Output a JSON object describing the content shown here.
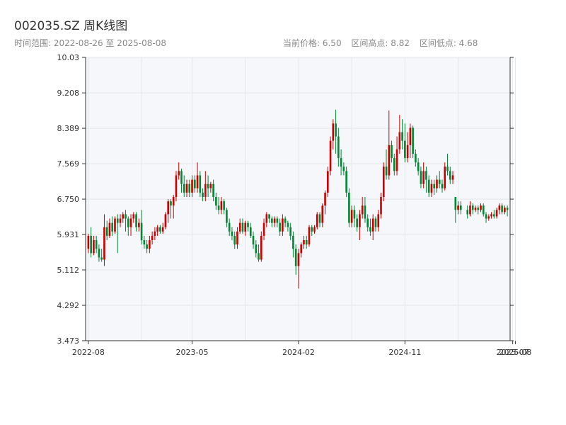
{
  "header": {
    "title": "002035.SZ 周K线图",
    "range_label": "时间范围: 2022-08-26 至 2025-08-08",
    "current_price": "当前价格: 6.50",
    "range_high": "区间高点: 8.82",
    "range_low": "区间低点: 4.68"
  },
  "chart_data": {
    "type": "candlestick",
    "title": "002035.SZ 周K线图",
    "ylim": [
      3.473,
      10.03
    ],
    "yticks": [
      "3.473",
      "4.292",
      "5.112",
      "5.931",
      "6.750",
      "7.569",
      "8.389",
      "9.208",
      "10.03"
    ],
    "xticks": [
      {
        "label": "2022-08",
        "idx": 0
      },
      {
        "label": "2023-05",
        "idx": 39
      },
      {
        "label": "2024-02",
        "idx": 79
      },
      {
        "label": "2024-11",
        "idx": 119
      },
      {
        "label": "2025-07",
        "idx": 158
      },
      {
        "label": "2025-08",
        "idx": 159
      }
    ],
    "up_color": "#cc0000",
    "down_color": "#008833",
    "grid": true,
    "gap_after_index": 140,
    "candles": [
      [
        5.6,
        5.9,
        5.5,
        5.95
      ],
      [
        5.9,
        5.5,
        5.4,
        6.1
      ],
      [
        5.5,
        5.8,
        5.45,
        5.9
      ],
      [
        5.8,
        5.6,
        5.5,
        5.9
      ],
      [
        5.6,
        5.4,
        5.3,
        5.7
      ],
      [
        5.4,
        5.35,
        5.3,
        5.6
      ],
      [
        5.35,
        6.1,
        5.2,
        6.4
      ],
      [
        6.1,
        5.9,
        5.8,
        6.25
      ],
      [
        5.9,
        6.2,
        5.85,
        6.3
      ],
      [
        6.2,
        6.0,
        5.9,
        6.35
      ],
      [
        6.0,
        6.3,
        5.95,
        6.35
      ],
      [
        6.3,
        6.2,
        5.5,
        6.4
      ],
      [
        6.2,
        6.3,
        6.1,
        6.4
      ],
      [
        6.3,
        6.4,
        6.2,
        6.45
      ],
      [
        6.4,
        6.3,
        6.0,
        6.5
      ],
      [
        6.3,
        6.1,
        5.9,
        6.35
      ],
      [
        6.1,
        6.3,
        5.9,
        6.4
      ],
      [
        6.3,
        6.4,
        6.2,
        6.45
      ],
      [
        6.4,
        6.1,
        6.0,
        6.45
      ],
      [
        6.1,
        6.2,
        6.0,
        6.3
      ],
      [
        6.2,
        5.8,
        5.7,
        6.5
      ],
      [
        5.8,
        5.7,
        5.6,
        5.9
      ],
      [
        5.7,
        5.6,
        5.5,
        5.8
      ],
      [
        5.6,
        5.8,
        5.5,
        5.9
      ],
      [
        5.8,
        5.9,
        5.7,
        6.0
      ],
      [
        5.9,
        6.0,
        5.8,
        6.1
      ],
      [
        6.0,
        6.1,
        5.9,
        6.15
      ],
      [
        6.1,
        6.0,
        5.95,
        6.15
      ],
      [
        6.0,
        6.1,
        5.95,
        6.2
      ],
      [
        6.1,
        6.4,
        6.05,
        6.45
      ],
      [
        6.4,
        6.7,
        6.2,
        6.75
      ],
      [
        6.7,
        6.6,
        6.3,
        6.75
      ],
      [
        6.6,
        6.8,
        6.3,
        6.85
      ],
      [
        6.8,
        7.3,
        6.7,
        7.4
      ],
      [
        7.3,
        7.4,
        7.2,
        7.6
      ],
      [
        7.4,
        7.1,
        6.9,
        7.45
      ],
      [
        7.1,
        6.9,
        6.8,
        7.3
      ],
      [
        6.9,
        7.1,
        6.8,
        7.2
      ],
      [
        7.1,
        6.9,
        6.8,
        7.2
      ],
      [
        6.9,
        7.2,
        6.8,
        7.3
      ],
      [
        7.2,
        7.0,
        6.9,
        7.3
      ],
      [
        7.0,
        7.3,
        6.9,
        7.6
      ],
      [
        7.3,
        6.9,
        6.8,
        7.4
      ],
      [
        6.9,
        6.8,
        6.7,
        7.0
      ],
      [
        6.8,
        7.1,
        6.7,
        7.4
      ],
      [
        7.1,
        7.0,
        6.8,
        7.3
      ],
      [
        7.0,
        7.1,
        6.9,
        7.15
      ],
      [
        7.1,
        6.8,
        6.7,
        7.2
      ],
      [
        6.8,
        6.6,
        6.5,
        6.9
      ],
      [
        6.6,
        6.5,
        6.4,
        6.8
      ],
      [
        6.5,
        6.7,
        6.4,
        6.8
      ],
      [
        6.7,
        6.5,
        6.4,
        6.75
      ],
      [
        6.5,
        6.2,
        6.1,
        6.55
      ],
      [
        6.2,
        6.0,
        5.9,
        6.3
      ],
      [
        6.0,
        5.9,
        5.8,
        6.1
      ],
      [
        5.9,
        5.7,
        5.6,
        6.0
      ],
      [
        5.7,
        6.0,
        5.6,
        6.1
      ],
      [
        6.0,
        6.2,
        5.95,
        6.3
      ],
      [
        6.2,
        6.0,
        5.95,
        6.3
      ],
      [
        6.0,
        6.2,
        5.9,
        6.25
      ],
      [
        6.2,
        6.1,
        6.0,
        6.25
      ],
      [
        6.1,
        5.9,
        5.85,
        6.2
      ],
      [
        5.9,
        5.7,
        5.6,
        6.0
      ],
      [
        5.7,
        5.5,
        5.4,
        5.8
      ],
      [
        5.5,
        5.35,
        5.3,
        5.7
      ],
      [
        5.35,
        5.9,
        5.3,
        6.0
      ],
      [
        5.9,
        6.2,
        5.8,
        6.3
      ],
      [
        6.2,
        6.4,
        6.1,
        6.45
      ],
      [
        6.4,
        6.3,
        6.2,
        6.4
      ],
      [
        6.3,
        6.2,
        6.1,
        6.35
      ],
      [
        6.2,
        6.3,
        6.1,
        6.35
      ],
      [
        6.3,
        6.2,
        6.1,
        6.35
      ],
      [
        6.2,
        6.0,
        5.9,
        6.3
      ],
      [
        6.0,
        6.3,
        5.9,
        6.4
      ],
      [
        6.3,
        6.2,
        6.1,
        6.35
      ],
      [
        6.2,
        6.1,
        6.0,
        6.25
      ],
      [
        6.1,
        5.9,
        5.8,
        6.2
      ],
      [
        5.9,
        5.6,
        5.4,
        6.0
      ],
      [
        5.6,
        5.2,
        5.0,
        5.7
      ],
      [
        5.2,
        5.5,
        4.68,
        5.6
      ],
      [
        5.5,
        5.7,
        5.4,
        5.75
      ],
      [
        5.7,
        5.8,
        5.6,
        5.9
      ],
      [
        5.8,
        5.7,
        5.6,
        5.9
      ],
      [
        5.7,
        6.1,
        5.65,
        6.15
      ],
      [
        6.1,
        6.0,
        5.9,
        6.15
      ],
      [
        6.0,
        6.1,
        5.95,
        6.15
      ],
      [
        6.1,
        6.4,
        6.05,
        6.45
      ],
      [
        6.4,
        6.2,
        6.1,
        6.45
      ],
      [
        6.2,
        6.6,
        6.1,
        6.65
      ],
      [
        6.6,
        6.9,
        6.4,
        6.95
      ],
      [
        6.9,
        7.4,
        6.8,
        7.5
      ],
      [
        7.4,
        8.1,
        7.3,
        8.2
      ],
      [
        8.1,
        8.5,
        7.9,
        8.6
      ],
      [
        8.5,
        8.2,
        7.8,
        8.82
      ],
      [
        8.2,
        7.7,
        7.5,
        8.4
      ],
      [
        7.7,
        7.5,
        7.3,
        7.9
      ],
      [
        7.5,
        7.4,
        7.3,
        7.6
      ],
      [
        7.4,
        6.9,
        6.8,
        7.5
      ],
      [
        6.9,
        6.2,
        6.1,
        7.0
      ],
      [
        6.2,
        6.5,
        6.1,
        6.6
      ],
      [
        6.5,
        6.3,
        6.1,
        6.6
      ],
      [
        6.3,
        6.1,
        6.0,
        6.4
      ],
      [
        6.1,
        6.4,
        5.8,
        6.5
      ],
      [
        6.4,
        6.6,
        6.3,
        6.8
      ],
      [
        6.6,
        6.3,
        6.2,
        6.8
      ],
      [
        6.3,
        6.1,
        6.0,
        6.4
      ],
      [
        6.1,
        6.0,
        5.9,
        6.3
      ],
      [
        6.0,
        6.3,
        5.8,
        6.4
      ],
      [
        6.3,
        6.1,
        6.0,
        6.35
      ],
      [
        6.1,
        6.4,
        6.0,
        6.5
      ],
      [
        6.4,
        6.8,
        6.3,
        6.9
      ],
      [
        6.8,
        7.5,
        6.7,
        7.6
      ],
      [
        7.5,
        7.3,
        7.2,
        7.9
      ],
      [
        7.3,
        8.0,
        7.2,
        8.8
      ],
      [
        8.0,
        7.7,
        7.6,
        8.1
      ],
      [
        7.7,
        7.4,
        7.3,
        7.8
      ],
      [
        7.4,
        7.9,
        7.3,
        8.2
      ],
      [
        7.9,
        8.3,
        7.8,
        8.7
      ],
      [
        8.3,
        8.1,
        7.9,
        8.6
      ],
      [
        8.1,
        7.7,
        7.6,
        8.5
      ],
      [
        7.7,
        8.0,
        7.6,
        8.3
      ],
      [
        8.0,
        8.4,
        7.7,
        8.5
      ],
      [
        8.4,
        7.8,
        7.7,
        8.45
      ],
      [
        7.8,
        7.6,
        7.5,
        7.9
      ],
      [
        7.6,
        7.4,
        7.3,
        7.7
      ],
      [
        7.4,
        7.1,
        7.0,
        7.5
      ],
      [
        7.1,
        7.4,
        7.0,
        7.6
      ],
      [
        7.4,
        7.2,
        6.9,
        7.5
      ],
      [
        7.2,
        6.9,
        6.8,
        7.3
      ],
      [
        6.9,
        7.1,
        6.8,
        7.2
      ],
      [
        7.1,
        7.0,
        6.85,
        7.2
      ],
      [
        7.0,
        7.2,
        6.9,
        7.3
      ],
      [
        7.2,
        7.1,
        7.0,
        7.4
      ],
      [
        7.1,
        7.0,
        6.9,
        7.2
      ],
      [
        7.0,
        7.5,
        6.95,
        7.6
      ],
      [
        7.5,
        7.4,
        7.3,
        7.8
      ],
      [
        7.4,
        7.2,
        7.1,
        7.5
      ],
      [
        7.2,
        7.3,
        7.1,
        7.4
      ],
      [
        6.8,
        6.5,
        6.2,
        6.8
      ],
      [
        6.5,
        6.6,
        6.4,
        6.7
      ],
      [
        6.6,
        6.5,
        6.4,
        6.7
      ],
      [
        6.5,
        6.4,
        6.3,
        6.6
      ],
      [
        6.4,
        6.6,
        6.35,
        6.7
      ],
      [
        6.6,
        6.5,
        6.4,
        6.65
      ],
      [
        6.5,
        6.55,
        6.45,
        6.6
      ],
      [
        6.55,
        6.5,
        6.4,
        6.6
      ],
      [
        6.5,
        6.6,
        6.45,
        6.65
      ],
      [
        6.6,
        6.4,
        6.35,
        6.65
      ],
      [
        6.4,
        6.3,
        6.2,
        6.45
      ],
      [
        6.3,
        6.35,
        6.25,
        6.4
      ],
      [
        6.35,
        6.4,
        6.3,
        6.45
      ],
      [
        6.4,
        6.35,
        6.3,
        6.5
      ],
      [
        6.35,
        6.5,
        6.3,
        6.55
      ],
      [
        6.5,
        6.6,
        6.4,
        6.65
      ],
      [
        6.6,
        6.45,
        6.4,
        6.65
      ],
      [
        6.45,
        6.55,
        6.4,
        6.6
      ],
      [
        6.55,
        6.5,
        6.35,
        6.6
      ]
    ]
  }
}
